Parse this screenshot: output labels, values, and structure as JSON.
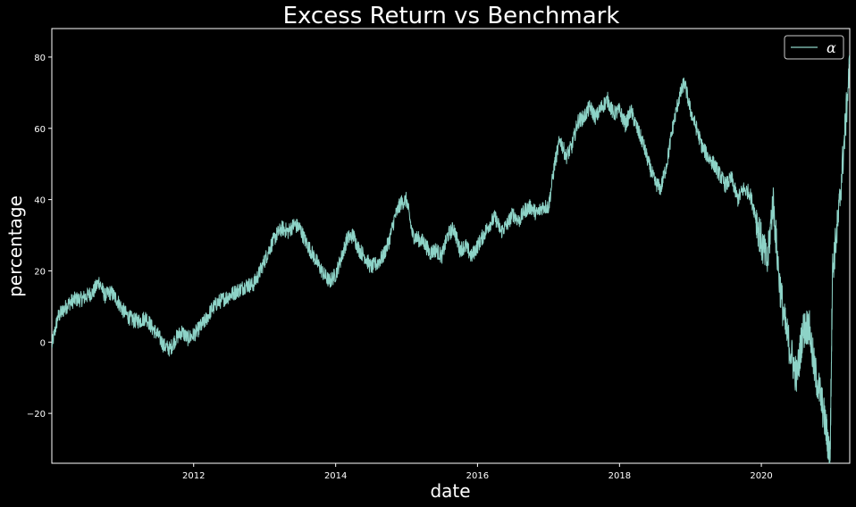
{
  "chart_data": {
    "type": "line",
    "title": "Excess Return vs Benchmark",
    "xlabel": "date",
    "ylabel": "percentage",
    "xlim": [
      "2010-01-01",
      "2021-03-31"
    ],
    "ylim": [
      -34,
      88
    ],
    "x_ticks": [
      {
        "value": "2012-01-01",
        "label": "2012"
      },
      {
        "value": "2014-01-01",
        "label": "2014"
      },
      {
        "value": "2016-01-01",
        "label": "2016"
      },
      {
        "value": "2018-01-01",
        "label": "2018"
      },
      {
        "value": "2020-01-01",
        "label": "2020"
      }
    ],
    "y_ticks": [
      {
        "value": -20,
        "label": "−20"
      },
      {
        "value": 0,
        "label": "0"
      },
      {
        "value": 20,
        "label": "20"
      },
      {
        "value": 40,
        "label": "40"
      },
      {
        "value": 60,
        "label": "60"
      },
      {
        "value": 80,
        "label": "80"
      }
    ],
    "grid": false,
    "legend": {
      "position": "top-right",
      "entries": [
        "α"
      ]
    },
    "series": [
      {
        "name": "α",
        "color": "#8dd3c7",
        "points": [
          [
            "2010-01-01",
            -1
          ],
          [
            "2010-02-01",
            7
          ],
          [
            "2010-03-01",
            9
          ],
          [
            "2010-04-01",
            11
          ],
          [
            "2010-05-01",
            12
          ],
          [
            "2010-06-01",
            12
          ],
          [
            "2010-07-01",
            13
          ],
          [
            "2010-08-01",
            14
          ],
          [
            "2010-09-01",
            17
          ],
          [
            "2010-10-01",
            13
          ],
          [
            "2010-11-01",
            14
          ],
          [
            "2010-12-01",
            12
          ],
          [
            "2011-01-01",
            9
          ],
          [
            "2011-02-01",
            7
          ],
          [
            "2011-03-01",
            6
          ],
          [
            "2011-04-01",
            6
          ],
          [
            "2011-05-01",
            7
          ],
          [
            "2011-06-01",
            4
          ],
          [
            "2011-07-01",
            2
          ],
          [
            "2011-08-01",
            -1
          ],
          [
            "2011-09-01",
            -2
          ],
          [
            "2011-10-01",
            1
          ],
          [
            "2011-11-01",
            3
          ],
          [
            "2011-12-01",
            1
          ],
          [
            "2012-01-01",
            2
          ],
          [
            "2012-02-01",
            4
          ],
          [
            "2012-03-01",
            6
          ],
          [
            "2012-04-01",
            9
          ],
          [
            "2012-05-01",
            11
          ],
          [
            "2012-06-01",
            12
          ],
          [
            "2012-07-01",
            13
          ],
          [
            "2012-08-01",
            14
          ],
          [
            "2012-09-01",
            15
          ],
          [
            "2012-10-01",
            16
          ],
          [
            "2012-11-01",
            16
          ],
          [
            "2012-12-01",
            19
          ],
          [
            "2013-01-01",
            23
          ],
          [
            "2013-02-01",
            27
          ],
          [
            "2013-03-01",
            30
          ],
          [
            "2013-04-01",
            32
          ],
          [
            "2013-05-01",
            31
          ],
          [
            "2013-06-01",
            33
          ],
          [
            "2013-07-01",
            32
          ],
          [
            "2013-08-01",
            28
          ],
          [
            "2013-09-01",
            25
          ],
          [
            "2013-10-01",
            22
          ],
          [
            "2013-11-01",
            19
          ],
          [
            "2013-12-01",
            17
          ],
          [
            "2014-01-01",
            19
          ],
          [
            "2014-02-01",
            24
          ],
          [
            "2014-03-01",
            29
          ],
          [
            "2014-04-01",
            30
          ],
          [
            "2014-05-01",
            26
          ],
          [
            "2014-06-01",
            24
          ],
          [
            "2014-07-01",
            21
          ],
          [
            "2014-08-01",
            22
          ],
          [
            "2014-09-01",
            24
          ],
          [
            "2014-10-01",
            28
          ],
          [
            "2014-11-01",
            35
          ],
          [
            "2014-12-01",
            39
          ],
          [
            "2015-01-01",
            40
          ],
          [
            "2015-02-01",
            30
          ],
          [
            "2015-03-01",
            29
          ],
          [
            "2015-04-01",
            28
          ],
          [
            "2015-05-01",
            25
          ],
          [
            "2015-06-01",
            26
          ],
          [
            "2015-07-01",
            24
          ],
          [
            "2015-08-01",
            30
          ],
          [
            "2015-09-01",
            32
          ],
          [
            "2015-10-01",
            26
          ],
          [
            "2015-11-01",
            27
          ],
          [
            "2015-12-01",
            24
          ],
          [
            "2016-01-01",
            27
          ],
          [
            "2016-02-01",
            30
          ],
          [
            "2016-03-01",
            33
          ],
          [
            "2016-04-01",
            35
          ],
          [
            "2016-05-01",
            31
          ],
          [
            "2016-06-01",
            33
          ],
          [
            "2016-07-01",
            36
          ],
          [
            "2016-08-01",
            34
          ],
          [
            "2016-09-01",
            37
          ],
          [
            "2016-10-01",
            38
          ],
          [
            "2016-11-01",
            36
          ],
          [
            "2016-12-01",
            38
          ],
          [
            "2017-01-01",
            38
          ],
          [
            "2017-02-01",
            50
          ],
          [
            "2017-03-01",
            57
          ],
          [
            "2017-04-01",
            52
          ],
          [
            "2017-05-01",
            55
          ],
          [
            "2017-06-01",
            62
          ],
          [
            "2017-07-01",
            63
          ],
          [
            "2017-08-01",
            66
          ],
          [
            "2017-09-01",
            63
          ],
          [
            "2017-10-01",
            66
          ],
          [
            "2017-11-01",
            68
          ],
          [
            "2017-12-01",
            64
          ],
          [
            "2018-01-01",
            65
          ],
          [
            "2018-02-01",
            61
          ],
          [
            "2018-03-01",
            65
          ],
          [
            "2018-04-01",
            60
          ],
          [
            "2018-05-01",
            56
          ],
          [
            "2018-06-01",
            50
          ],
          [
            "2018-07-01",
            45
          ],
          [
            "2018-08-01",
            43
          ],
          [
            "2018-09-01",
            50
          ],
          [
            "2018-10-01",
            60
          ],
          [
            "2018-11-01",
            68
          ],
          [
            "2018-12-01",
            73
          ],
          [
            "2019-01-01",
            65
          ],
          [
            "2019-02-01",
            60
          ],
          [
            "2019-03-01",
            55
          ],
          [
            "2019-04-01",
            52
          ],
          [
            "2019-05-01",
            50
          ],
          [
            "2019-06-01",
            47
          ],
          [
            "2019-07-01",
            44
          ],
          [
            "2019-08-01",
            46
          ],
          [
            "2019-09-01",
            40
          ],
          [
            "2019-10-01",
            43
          ],
          [
            "2019-11-01",
            42
          ],
          [
            "2019-12-01",
            36
          ],
          [
            "2020-01-01",
            28
          ],
          [
            "2020-02-01",
            22
          ],
          [
            "2020-03-01",
            40
          ],
          [
            "2020-04-01",
            18
          ],
          [
            "2020-05-01",
            5
          ],
          [
            "2020-06-01",
            -3
          ],
          [
            "2020-07-01",
            -10
          ],
          [
            "2020-08-01",
            3
          ],
          [
            "2020-09-01",
            5
          ],
          [
            "2020-10-01",
            -8
          ],
          [
            "2020-11-01",
            -15
          ],
          [
            "2020-12-01",
            -25
          ],
          [
            "2020-12-20",
            -33
          ],
          [
            "2021-01-01",
            20
          ],
          [
            "2021-02-01",
            35
          ],
          [
            "2021-03-01",
            55
          ],
          [
            "2021-03-31",
            78
          ]
        ]
      }
    ]
  }
}
